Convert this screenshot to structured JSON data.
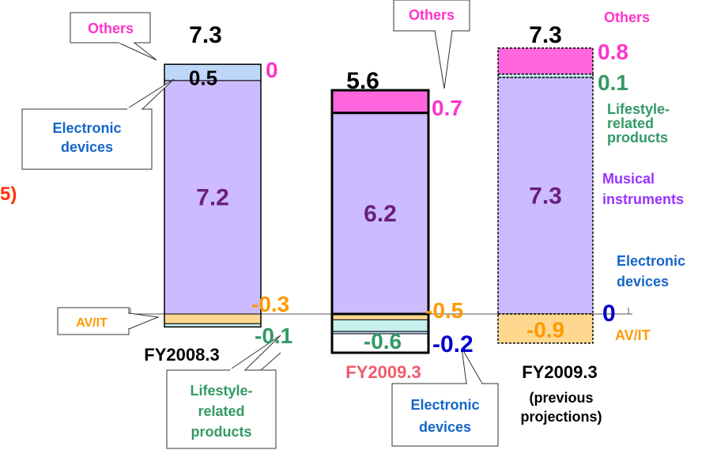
{
  "chart_data": {
    "type": "bar",
    "stacked": true,
    "title": "",
    "xlabel": "",
    "ylabel": "",
    "bars": [
      {
        "label": "FY2008.3",
        "sublabel": "",
        "total": "7.3",
        "label_color": "#000000",
        "style": "solid",
        "segments": [
          {
            "name": "Musical instruments",
            "value": 7.2,
            "label": "7.2",
            "color": "#ccbbff"
          },
          {
            "name": "Electronic devices",
            "value": 0.5,
            "label": "0.5",
            "color": "#bcd7f7"
          },
          {
            "name": "AV/IT",
            "value": -0.3,
            "label": "-0.3",
            "color": "#ffd890"
          },
          {
            "name": "Lifestyle-related products",
            "value": -0.1,
            "label": "-0.1",
            "color": "#c6f0ee"
          },
          {
            "name": "Others",
            "value": 0,
            "label": "0",
            "color": "#ff33cc"
          }
        ]
      },
      {
        "label": "FY2009.3",
        "sublabel": "",
        "total": "5.6",
        "label_color": "#f05a6a",
        "style": "solid",
        "segments": [
          {
            "name": "Musical instruments",
            "value": 6.2,
            "label": "6.2",
            "color": "#ccbbff"
          },
          {
            "name": "Others",
            "value": 0.7,
            "label": "0.7",
            "color": "#ff66dd"
          },
          {
            "name": "AV/IT",
            "value": -0.5,
            "label": "-0.5",
            "color": "#ffd890"
          },
          {
            "name": "Lifestyle-related products",
            "value": -0.6,
            "label": "-0.6",
            "color": "#c6f0ee"
          },
          {
            "name": "Electronic devices",
            "value": -0.2,
            "label": "-0.2",
            "color": "#bcd7f7"
          }
        ]
      },
      {
        "label": "FY2009.3",
        "sublabel": "(previous projections)",
        "total": "7.3",
        "label_color": "#000000",
        "style": "dashed",
        "segments": [
          {
            "name": "Musical instruments",
            "value": 7.3,
            "label": "7.3",
            "color": "#ccbbff"
          },
          {
            "name": "Lifestyle-related products",
            "value": 0.1,
            "label": "0.1",
            "color": "#c6f0ee"
          },
          {
            "name": "Others",
            "value": 0.8,
            "label": "0.8",
            "color": "#ff66dd"
          },
          {
            "name": "AV/IT",
            "value": -0.9,
            "label": "-0.9",
            "color": "#ffd890"
          },
          {
            "name": "Electronic devices",
            "value": 0,
            "label": "0",
            "color": "#bcd7f7"
          }
        ]
      }
    ],
    "category_colors": {
      "Musical instruments": "#9933ff",
      "Electronic devices": "#1466c8",
      "AV/IT": "#ff9900",
      "Lifestyle-related products": "#339966",
      "Others": "#ff33cc"
    },
    "callouts": {
      "others_1": "Others",
      "electronic_1": [
        "Electronic",
        "devices"
      ],
      "avit_1": "AV/IT",
      "lifestyle_1": [
        "Lifestyle-",
        "related",
        "products"
      ],
      "others_2": "Others",
      "electronic_2": [
        "Electronic",
        "devices"
      ]
    },
    "side_labels": {
      "others": "Others",
      "lifestyle": [
        "Lifestyle-",
        "related",
        "products"
      ],
      "musical": [
        "Musical",
        "instruments"
      ],
      "electronic": [
        "Electronic",
        "devices"
      ],
      "avit": "AV/IT"
    },
    "clipped_left_text": "5)",
    "clipped_left_color": "#ff3300"
  }
}
